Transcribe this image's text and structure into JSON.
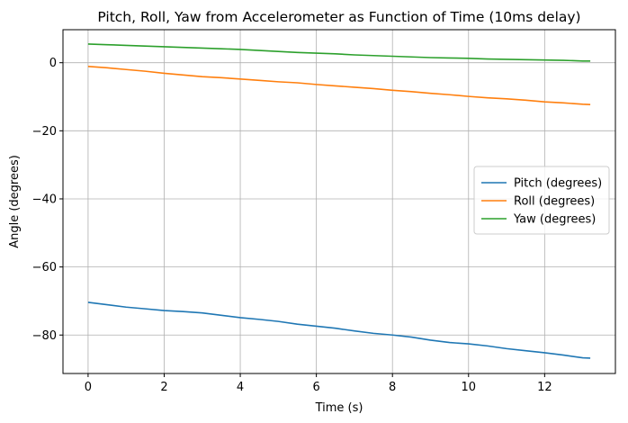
{
  "chart_data": {
    "type": "line",
    "title": "Pitch, Roll, Yaw from Accelerometer as Function of Time (10ms delay)",
    "xlabel": "Time (s)",
    "ylabel": "Angle (degrees)",
    "xlim": [
      -0.66,
      13.86
    ],
    "ylim": [
      -91.3,
      9.7
    ],
    "xticks": [
      0,
      2,
      4,
      6,
      8,
      10,
      12
    ],
    "yticks": [
      0,
      -20,
      -40,
      -60,
      -80
    ],
    "xtick_labels": [
      "0",
      "2",
      "4",
      "6",
      "8",
      "10",
      "12"
    ],
    "ytick_labels": [
      "0",
      "−20",
      "−40",
      "−60",
      "−80"
    ],
    "grid": true,
    "legend_position": "center-right",
    "series": [
      {
        "name": "Pitch (degrees)",
        "color": "#1f77b4",
        "x": [
          0,
          0.5,
          1,
          1.5,
          2,
          2.5,
          3,
          3.5,
          4,
          4.5,
          5,
          5.5,
          6,
          6.5,
          7,
          7.5,
          8,
          8.5,
          9,
          9.5,
          10,
          10.5,
          11,
          11.5,
          12,
          12.5,
          13,
          13.2
        ],
        "y": [
          -70.4,
          -71.1,
          -71.8,
          -72.3,
          -72.8,
          -73.1,
          -73.5,
          -74.2,
          -74.9,
          -75.4,
          -76.0,
          -76.8,
          -77.4,
          -78.0,
          -78.8,
          -79.5,
          -80.0,
          -80.6,
          -81.5,
          -82.2,
          -82.6,
          -83.2,
          -84.0,
          -84.6,
          -85.2,
          -85.9,
          -86.7,
          -86.8
        ]
      },
      {
        "name": "Roll (degrees)",
        "color": "#ff7f0e",
        "x": [
          0,
          0.5,
          1,
          1.5,
          2,
          2.5,
          3,
          3.5,
          4,
          4.5,
          5,
          5.5,
          6,
          6.5,
          7,
          7.5,
          8,
          8.5,
          9,
          9.5,
          10,
          10.5,
          11,
          11.5,
          12,
          12.5,
          13,
          13.2
        ],
        "y": [
          -1.1,
          -1.5,
          -2.0,
          -2.5,
          -3.1,
          -3.6,
          -4.1,
          -4.4,
          -4.8,
          -5.2,
          -5.6,
          -5.9,
          -6.4,
          -6.8,
          -7.2,
          -7.6,
          -8.1,
          -8.5,
          -9.0,
          -9.4,
          -9.9,
          -10.3,
          -10.6,
          -11.0,
          -11.5,
          -11.8,
          -12.2,
          -12.3
        ]
      },
      {
        "name": "Yaw (degrees)",
        "color": "#2ca02c",
        "x": [
          0,
          0.5,
          1,
          1.5,
          2,
          2.5,
          3,
          3.5,
          4,
          4.5,
          5,
          5.5,
          6,
          6.5,
          7,
          7.5,
          8,
          8.5,
          9,
          9.5,
          10,
          10.5,
          11,
          11.5,
          12,
          12.5,
          13,
          13.2
        ],
        "y": [
          5.5,
          5.3,
          5.1,
          4.9,
          4.7,
          4.5,
          4.3,
          4.1,
          3.9,
          3.6,
          3.3,
          3.0,
          2.8,
          2.6,
          2.3,
          2.1,
          1.9,
          1.7,
          1.5,
          1.4,
          1.3,
          1.1,
          1.0,
          0.9,
          0.8,
          0.7,
          0.5,
          0.5
        ]
      }
    ]
  }
}
